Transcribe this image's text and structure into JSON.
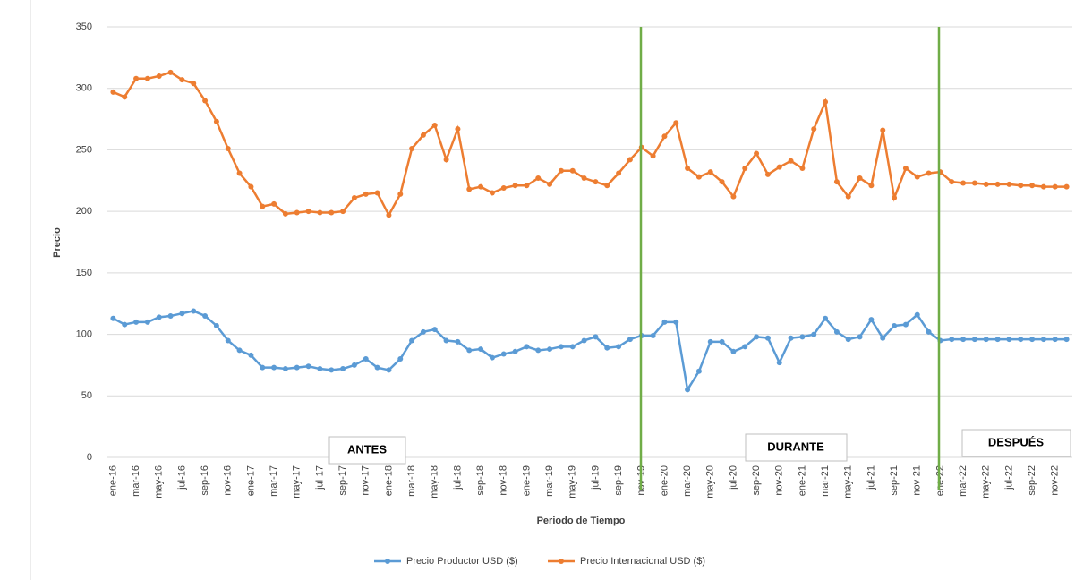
{
  "chart_data": {
    "type": "line",
    "y_label": "Precio",
    "x_label": "Periodo de Tiempo",
    "annotations": [
      "ANTES",
      "DURANTE",
      "DESPUÉS"
    ],
    "categories": [
      "ene-16",
      null,
      "mar-16",
      null,
      "may-16",
      null,
      "jul-16",
      null,
      "sep-16",
      null,
      "nov-16",
      null,
      "ene-17",
      null,
      "mar-17",
      null,
      "may-17",
      null,
      "jul-17",
      null,
      "sep-17",
      null,
      "nov-17",
      null,
      "ene-18",
      null,
      "mar-18",
      null,
      "may-18",
      null,
      "jul-18",
      null,
      "sep-18",
      null,
      "nov-18",
      null,
      "ene-19",
      null,
      "mar-19",
      null,
      "may-19",
      null,
      "jul-19",
      null,
      "sep-19",
      null,
      "nov-19",
      null,
      "ene-20",
      null,
      "mar-20",
      null,
      "may-20",
      null,
      "jul-20",
      null,
      "sep-20",
      null,
      "nov-20",
      null,
      "ene-21",
      null,
      "mar-21",
      null,
      "may-21",
      null,
      "jul-21",
      null,
      "sep-21",
      null,
      "nov-21",
      null,
      "ene-22",
      null,
      "mar-22",
      null,
      "may-22",
      null,
      "jul-22",
      null,
      "sep-22",
      null,
      "nov-22",
      null
    ],
    "series": [
      {
        "name": "Precio Productor USD ($)",
        "color": "#5b9bd5",
        "values": [
          113,
          108,
          110,
          110,
          114,
          115,
          117,
          119,
          115,
          107,
          95,
          87,
          83,
          73,
          73,
          72,
          73,
          74,
          72,
          71,
          72,
          75,
          80,
          73,
          71,
          80,
          95,
          102,
          104,
          95,
          94,
          87,
          88,
          81,
          84,
          86,
          90,
          87,
          88,
          90,
          90,
          95,
          98,
          89,
          90,
          96,
          99,
          99,
          110,
          110,
          55,
          70,
          94,
          94,
          86,
          90,
          98,
          97,
          77,
          97,
          98,
          100,
          113,
          102,
          96,
          98,
          112,
          97,
          107,
          108,
          116,
          102,
          95,
          96,
          96,
          96,
          96,
          96,
          96,
          96,
          96,
          96,
          96,
          96
        ]
      },
      {
        "name": "Precio Internacional USD ($)",
        "color": "#ed7d31",
        "values": [
          297,
          293,
          308,
          308,
          310,
          313,
          307,
          304,
          290,
          273,
          251,
          231,
          220,
          204,
          206,
          198,
          199,
          200,
          199,
          199,
          200,
          211,
          214,
          215,
          197,
          214,
          251,
          262,
          270,
          242,
          267,
          218,
          220,
          215,
          219,
          221,
          221,
          227,
          222,
          233,
          233,
          227,
          224,
          221,
          231,
          242,
          252,
          245,
          261,
          272,
          235,
          228,
          232,
          224,
          212,
          235,
          247,
          230,
          236,
          241,
          235,
          267,
          289,
          224,
          212,
          227,
          221,
          266,
          211,
          235,
          228,
          231,
          232,
          224,
          223,
          223,
          222,
          222,
          222,
          221,
          221,
          220,
          220,
          220
        ]
      }
    ],
    "ylim": [
      0,
      350
    ],
    "yticks": [
      0,
      50,
      100,
      150,
      200,
      250,
      300,
      350
    ],
    "grid": true
  }
}
